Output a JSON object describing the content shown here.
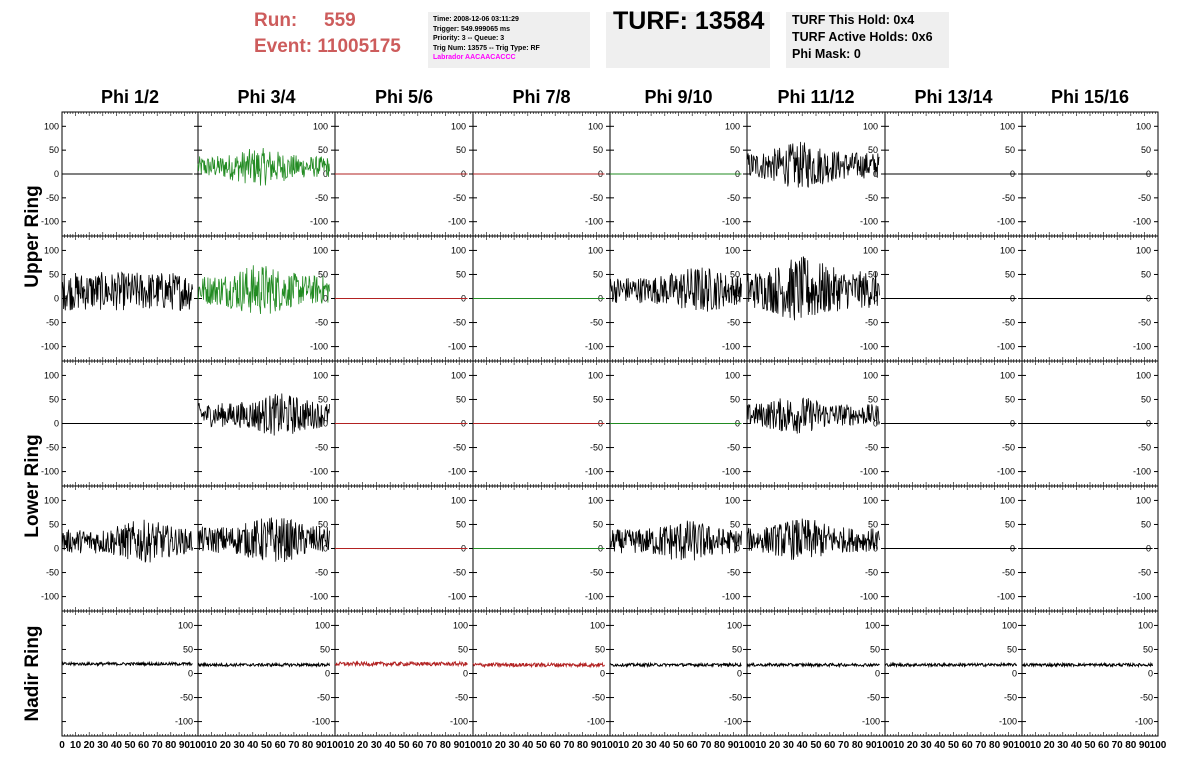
{
  "header": {
    "run_label": "Run:",
    "run_value": "559",
    "event_label": "Event:",
    "event_value": "11005175",
    "info_lines": [
      "Time: 2008-12-06 03:11:29",
      "Trigger: 549.999065 ms",
      "Priority: 3 -- Queue: 3",
      "Trig Num: 13575 -- Trig Type: RF"
    ],
    "info_highlight": "Labrador AACAACACCC",
    "turf_title": "TURF: 13584",
    "turf_lines": [
      "TURF This Hold: 0x4",
      "TURF Active Holds: 0x6",
      "Phi Mask: 0"
    ]
  },
  "colors": {
    "header_red": "#cd5c5c",
    "labrador_magenta": "#ff00ff",
    "trace_black": "#000000",
    "trace_green": "#228b22",
    "trace_red": "#b22222",
    "box_gray": "#efefef"
  },
  "chart_data": {
    "type": "line",
    "columns": [
      "Phi 1/2",
      "Phi 3/4",
      "Phi 5/6",
      "Phi 7/8",
      "Phi 9/10",
      "Phi 11/12",
      "Phi 13/14",
      "Phi 15/16"
    ],
    "rows": [
      "Upper Ring",
      "Upper Ring",
      "Lower Ring",
      "Lower Ring",
      "Nadir Ring"
    ],
    "ring_labels": [
      {
        "label": "Upper Ring",
        "rows": [
          0,
          1
        ]
      },
      {
        "label": "Lower Ring",
        "rows": [
          2,
          3
        ]
      },
      {
        "label": "Nadir Ring",
        "rows": [
          4
        ]
      }
    ],
    "xlim": [
      0,
      100
    ],
    "ylim": [
      -130,
      130
    ],
    "yticks": [
      -100,
      -50,
      0,
      50,
      100
    ],
    "yticks_nadir": [
      -100,
      -50,
      0,
      50,
      100
    ],
    "ylim_nadir": [
      -130,
      130
    ],
    "x_tick_labels": [
      "0",
      "10",
      "20",
      "30",
      "40",
      "50",
      "60",
      "70",
      "80",
      "90",
      "100"
    ],
    "panels": [
      [
        {
          "color": "black",
          "mean": 0,
          "amp": 0
        },
        {
          "color": "green",
          "mean": 15,
          "amp": 40,
          "burst": 45
        },
        {
          "color": "red",
          "mean": 0,
          "amp": 0
        },
        {
          "color": "red",
          "mean": 0,
          "amp": 0
        },
        {
          "color": "green",
          "mean": 0,
          "amp": 0
        },
        {
          "color": "black",
          "mean": 18,
          "amp": 50,
          "burst": 40
        },
        {
          "color": "black",
          "mean": 0,
          "amp": 0
        },
        {
          "color": "black",
          "mean": 0,
          "amp": 0
        }
      ],
      [
        {
          "color": "black",
          "mean": 15,
          "amp": 40
        },
        {
          "color": "green",
          "mean": 18,
          "amp": 55,
          "burst": 45
        },
        {
          "color": "red",
          "mean": 0,
          "amp": 0
        },
        {
          "color": "green",
          "mean": 0,
          "amp": 0
        },
        {
          "color": "black",
          "mean": 18,
          "amp": 50,
          "burst": 65
        },
        {
          "color": "black",
          "mean": 18,
          "amp": 70,
          "burst": 40
        },
        {
          "color": "black",
          "mean": 0,
          "amp": 0
        },
        {
          "color": "black",
          "mean": 0,
          "amp": 0
        }
      ],
      [
        {
          "color": "black",
          "mean": 0,
          "amp": 0
        },
        {
          "color": "black",
          "mean": 18,
          "amp": 45,
          "burst": 60
        },
        {
          "color": "red",
          "mean": 0,
          "amp": 0
        },
        {
          "color": "red",
          "mean": 0,
          "amp": 0
        },
        {
          "color": "green",
          "mean": 0,
          "amp": 0
        },
        {
          "color": "black",
          "mean": 18,
          "amp": 40,
          "burst": 35
        },
        {
          "color": "black",
          "mean": 0,
          "amp": 0
        },
        {
          "color": "black",
          "mean": 0,
          "amp": 0
        }
      ],
      [
        {
          "color": "black",
          "mean": 15,
          "amp": 45,
          "burst": 60
        },
        {
          "color": "black",
          "mean": 18,
          "amp": 50,
          "burst": 55
        },
        {
          "color": "red",
          "mean": 0,
          "amp": 0
        },
        {
          "color": "green",
          "mean": 0,
          "amp": 0
        },
        {
          "color": "black",
          "mean": 15,
          "amp": 45,
          "burst": 55
        },
        {
          "color": "black",
          "mean": 18,
          "amp": 45,
          "burst": 40
        },
        {
          "color": "black",
          "mean": 0,
          "amp": 0
        },
        {
          "color": "black",
          "mean": 0,
          "amp": 0
        }
      ],
      [
        {
          "color": "black",
          "mean": 20,
          "amp": 3
        },
        {
          "color": "black",
          "mean": 18,
          "amp": 3
        },
        {
          "color": "red",
          "mean": 20,
          "amp": 4
        },
        {
          "color": "red",
          "mean": 18,
          "amp": 4
        },
        {
          "color": "black",
          "mean": 18,
          "amp": 3
        },
        {
          "color": "black",
          "mean": 18,
          "amp": 3
        },
        {
          "color": "black",
          "mean": 18,
          "amp": 3
        },
        {
          "color": "black",
          "mean": 18,
          "amp": 3
        }
      ]
    ]
  }
}
